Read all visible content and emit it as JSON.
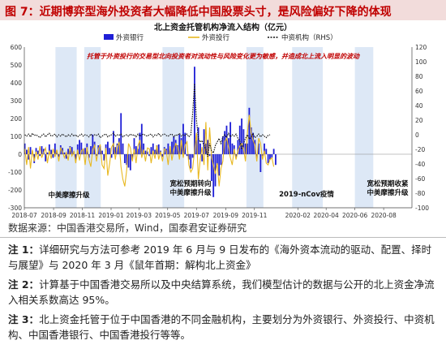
{
  "header": {
    "figure_title": "图 7：近期博弈型海外投资者大幅降低中国股票头寸，是风险偏好下降的体现"
  },
  "source": "数据来源：中国香港交易所，Wind，国泰君安证券研究",
  "notes": [
    {
      "label": "注 1：",
      "text": "详细研究与方法可参考 2019 年 6 月与 9 日发布的《海外资本流动的驱动、配置、择时与展望》与 2020 年 3 月《鼠年首期：解构北上资金》"
    },
    {
      "label": "注 2：",
      "text": "计算基于中国香港交易所以及中央结算系统，我们模型估计的数据与公开的北上资金净流入相关系数高达 95%。"
    },
    {
      "label": "注 3：",
      "text": "北上资金托管于位于中国香港的不同金融机构，主要划分为外资银行、外资投行、中资机构、中国香港银行、中国香港投行等等。"
    }
  ],
  "colors": {
    "foreign_bank": "#1f1fd6",
    "foreign_ib": "#e8b820",
    "chinese": "#111111",
    "shade": "#dde8f6",
    "accent": "#c00000"
  },
  "chart_data": {
    "type": "bar",
    "title": "北上资金托管机构净流入结构（亿元）",
    "legend": [
      "外资银行",
      "外资投行",
      "中资机构（RHS）"
    ],
    "legend_position": "top",
    "annotation": "托管于外资投行的交易型北向投资者对流动性与风险变化更为敏感，并造成北上流入明显的波动",
    "y_left": {
      "min": -300,
      "max": 600,
      "ticks": [
        -300,
        -200,
        -100,
        0,
        100,
        200,
        300,
        400,
        500,
        600
      ]
    },
    "y_right": {
      "min": -100,
      "max": 120,
      "ticks": [
        -100,
        -80,
        -60,
        -40,
        -20,
        0,
        20,
        40,
        60,
        80,
        100,
        120
      ]
    },
    "x_range": [
      "2018-07-01",
      "2020-09-30"
    ],
    "x_ticks": [
      "2018-07",
      "2018-09",
      "2018-11",
      "2019-01",
      "2019-03",
      "2019-05",
      "2019-07",
      "2019-09",
      "2019-11",
      "2020-02",
      "2020-04",
      "2020-06",
      "2020-08"
    ],
    "shaded_periods": [
      {
        "start": "2018-09-05",
        "end": "2018-10-20",
        "label": "中美摩擦升级"
      },
      {
        "start": "2018-11-05",
        "end": "2018-12-10",
        "label": ""
      },
      {
        "start": "2019-04-20",
        "end": "2019-06-05",
        "label": "宽松预期转向 中美摩擦升级"
      },
      {
        "start": "2019-10-15",
        "end": "2019-11-20",
        "label": ""
      },
      {
        "start": "2020-01-20",
        "end": "2020-03-25",
        "label": "2019-nCov疫情"
      },
      {
        "start": "2020-06-01",
        "end": "2020-07-10",
        "label": "宽松预期收紧 中美摩擦升级"
      }
    ],
    "series": [
      {
        "name": "外资银行",
        "axis": "left",
        "kind": "bar",
        "step_days": 4,
        "start": "2018-07-02",
        "values": [
          60,
          25,
          -30,
          40,
          15,
          -50,
          35,
          20,
          -10,
          45,
          30,
          -40,
          10,
          55,
          25,
          -20,
          60,
          20,
          -15,
          50,
          35,
          10,
          -25,
          30,
          45,
          40,
          15,
          -30,
          55,
          80,
          65,
          30,
          35,
          60,
          -20,
          45,
          110,
          70,
          -10,
          50,
          45,
          20,
          -35,
          55,
          70,
          35,
          -20,
          130,
          40,
          60,
          90,
          230,
          60,
          -50,
          -60,
          -75,
          -90,
          -30,
          90,
          45,
          30,
          120,
          170,
          60,
          20,
          15,
          -10,
          40,
          60,
          25,
          50,
          55,
          20,
          -15,
          40,
          30,
          60,
          25,
          70,
          100,
          80,
          50,
          110,
          90,
          170,
          120,
          -10,
          -30,
          -80,
          -20,
          490,
          80,
          150,
          60,
          -40,
          140,
          60,
          80,
          -10,
          -150,
          -240,
          -180,
          -60,
          -120,
          -60,
          100,
          130,
          160,
          90,
          180,
          60,
          50,
          -20,
          80,
          160,
          200,
          140,
          60,
          60,
          260,
          150,
          120,
          80,
          -20,
          60,
          -100,
          -10,
          60,
          30,
          -50,
          -30,
          -20,
          30,
          -60
        ]
      },
      {
        "name": "外资投行",
        "axis": "left",
        "kind": "line",
        "step_days": 4,
        "start": "2018-07-02",
        "values": [
          30,
          -60,
          40,
          -80,
          25,
          -40,
          15,
          -30,
          45,
          -20,
          10,
          35,
          -50,
          20,
          -25,
          30,
          -15,
          25,
          -40,
          35,
          15,
          -20,
          10,
          -35,
          40,
          -10,
          15,
          -50,
          25,
          -35,
          20,
          30,
          -60,
          40,
          -30,
          -70,
          25,
          50,
          -40,
          30,
          55,
          -60,
          -80,
          35,
          -120,
          -50,
          40,
          60,
          -30,
          45,
          65,
          -70,
          -140,
          -180,
          -90,
          60,
          35,
          -40,
          30,
          -50,
          45,
          80,
          -20,
          25,
          -40,
          35,
          30,
          -50,
          20,
          -25,
          50,
          -30,
          15,
          -40,
          30,
          20,
          -60,
          45,
          -35,
          25,
          60,
          40,
          -30,
          80,
          -20,
          50,
          70,
          -60,
          -100,
          -80,
          20,
          120,
          -140,
          -30,
          40,
          -60,
          180,
          -90,
          150,
          -20,
          -60,
          -110,
          -50,
          -180,
          -80,
          -40,
          70,
          90,
          40,
          -20,
          -60,
          30,
          -30,
          20,
          45,
          60,
          30,
          -40,
          120,
          220,
          120,
          80,
          50,
          -40,
          90,
          60,
          -30,
          20,
          -50,
          -60,
          -30,
          -20,
          -70
        ]
      },
      {
        "name": "中资机构（RHS）",
        "axis": "right",
        "kind": "line",
        "step_days": 4,
        "start": "2018-07-02",
        "values": [
          0,
          -2,
          1,
          -3,
          2,
          -1,
          0,
          -2,
          -4,
          -1,
          1,
          -3,
          0,
          2,
          -2,
          -1,
          1,
          -3,
          0,
          -2,
          1,
          -1,
          -3,
          0,
          -2,
          1,
          -2,
          0,
          -3,
          -1,
          1,
          -2,
          0,
          -1,
          -3,
          1,
          -2,
          0,
          -1,
          1,
          -4,
          -2,
          0,
          1,
          -3,
          -1,
          0,
          2,
          -2,
          0,
          -1,
          1,
          -3,
          -1,
          0,
          -2,
          1,
          -1,
          0,
          -3,
          1,
          -2,
          0,
          1,
          -1,
          -2,
          0,
          1,
          -3,
          0,
          -1,
          2,
          -2,
          0,
          1,
          -1,
          -2,
          0,
          1,
          -3,
          0,
          -1,
          2,
          -2,
          0,
          -1,
          1,
          -3,
          0,
          30,
          70,
          20,
          -5,
          -10,
          -8,
          -15,
          -20,
          -30,
          -12,
          -22,
          -25,
          -15,
          -10,
          -5,
          -12,
          -3,
          0,
          -4,
          2,
          -3,
          0,
          -2,
          1,
          -5,
          -8,
          -20,
          -12,
          -5,
          0,
          -6,
          -3,
          2,
          -4,
          -2,
          1,
          -3,
          0,
          -2,
          -4,
          -1,
          0
        ]
      }
    ]
  }
}
